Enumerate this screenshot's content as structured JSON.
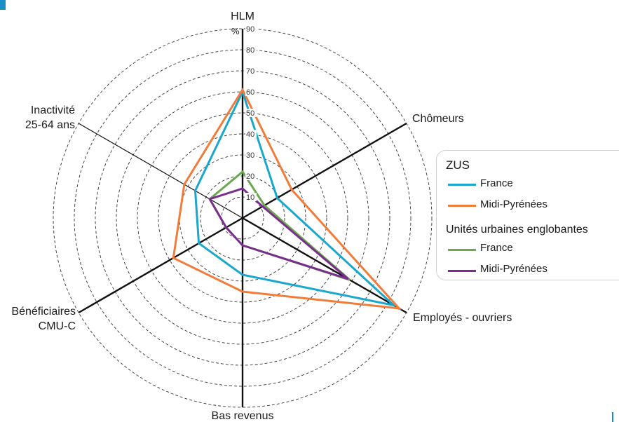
{
  "chart_data": {
    "type": "radar",
    "unit_label": "%",
    "axes": [
      "HLM",
      "Chômeurs",
      "Employés - ouvriers",
      "Bas revenus",
      "Bénéficiaires CMU-C",
      "Inactivité 25-64 ans"
    ],
    "axis_label_lines": [
      [
        "HLM"
      ],
      [
        "Chômeurs"
      ],
      [
        "Employés - ouvriers"
      ],
      [
        "Bas revenus"
      ],
      [
        "Bénéficiaires",
        "CMU-C"
      ],
      [
        "Inactivité",
        "25-64 ans"
      ]
    ],
    "rmax": 90,
    "ticks": [
      10,
      20,
      30,
      40,
      50,
      60,
      70,
      80,
      90
    ],
    "series": [
      {
        "group": "ZUS",
        "name": "France",
        "color": "#1aa7cc",
        "values": [
          60,
          19,
          83,
          27,
          24,
          26
        ]
      },
      {
        "group": "ZUS",
        "name": "Midi-Pyrénées",
        "color": "#f07c3a",
        "values": [
          61,
          27,
          86,
          35,
          38,
          32
        ]
      },
      {
        "group": "Unités urbaines englobantes",
        "name": "France",
        "color": "#6aa84f",
        "values": [
          22,
          12,
          59,
          13,
          9,
          18
        ]
      },
      {
        "group": "Unités urbaines englobantes",
        "name": "Midi-Pyrénées",
        "color": "#7b2d8e",
        "values": [
          14,
          11,
          58,
          13,
          9,
          18
        ]
      }
    ]
  },
  "legend": {
    "group1_title": "ZUS",
    "group1_item1": "France",
    "group1_item2": "Midi-Pyrénées",
    "group2_title": "Unités urbaines englobantes",
    "group2_item1": "France",
    "group2_item2": "Midi-Pyrénées",
    "colors": [
      "#1aa7cc",
      "#f07c3a",
      "#6aa84f",
      "#7b2d8e"
    ]
  }
}
